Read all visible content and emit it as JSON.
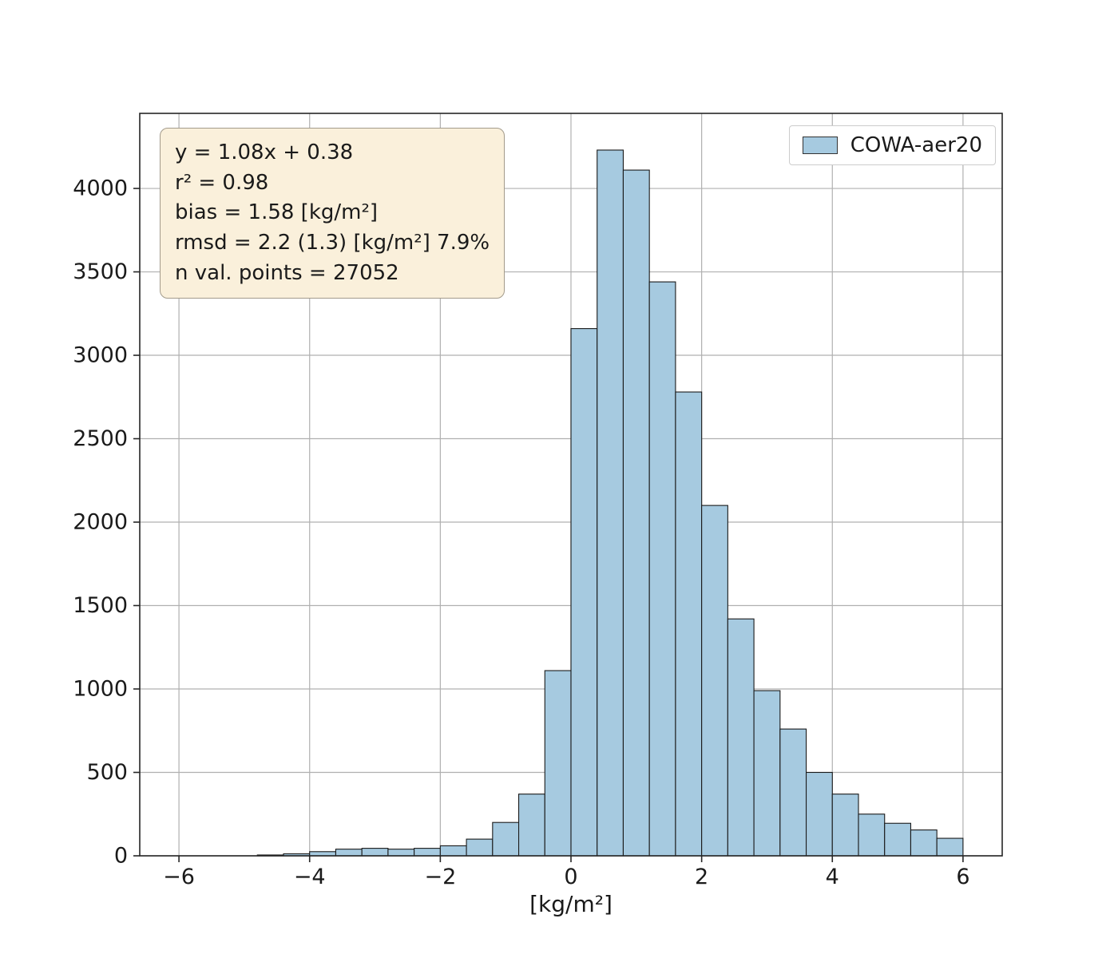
{
  "figure": {
    "xlabel": "[kg/m²]",
    "legend": {
      "label": "COWA-aer20"
    },
    "stats_box": {
      "lines": [
        "y = 1.08x + 0.38",
        "r² = 0.98",
        "bias = 1.58 [kg/m²]",
        "rmsd = 2.2 (1.3) [kg/m²] 7.9%",
        "n val. points = 27052"
      ]
    }
  },
  "chart_data": {
    "type": "bar",
    "subtype": "histogram",
    "title": "",
    "xlabel": "[kg/m²]",
    "ylabel": "",
    "legend_entries": [
      "COWA-aer20"
    ],
    "legend_position": "upper right",
    "grid": true,
    "bin_start": -4.8,
    "bin_width": 0.4,
    "counts": [
      5,
      12,
      25,
      40,
      45,
      40,
      45,
      60,
      100,
      200,
      370,
      1110,
      3160,
      4230,
      4110,
      3440,
      2780,
      2100,
      1420,
      990,
      760,
      500,
      370,
      250,
      195,
      155,
      105
    ],
    "xlim": [
      -6.6,
      6.6
    ],
    "ylim": [
      0,
      4450
    ],
    "xticks": [
      -6,
      -4,
      -2,
      0,
      2,
      4,
      6
    ],
    "xtick_labels": [
      "−6",
      "−4",
      "−2",
      "0",
      "2",
      "4",
      "6"
    ],
    "yticks": [
      0,
      500,
      1000,
      1500,
      2000,
      2500,
      3000,
      3500,
      4000
    ],
    "ytick_labels": [
      "0",
      "500",
      "1000",
      "1500",
      "2000",
      "2500",
      "3000",
      "3500",
      "4000"
    ],
    "bar_fill": "#a6cae0",
    "bar_edge": "#1a1a1a",
    "grid_color": "#b0b0b0",
    "spine_color": "#262626",
    "annotations": [
      "y = 1.08x + 0.38",
      "r² = 0.98",
      "bias = 1.58 [kg/m²]",
      "rmsd = 2.2 (1.3) [kg/m²] 7.9%",
      "n val. points = 27052"
    ]
  }
}
